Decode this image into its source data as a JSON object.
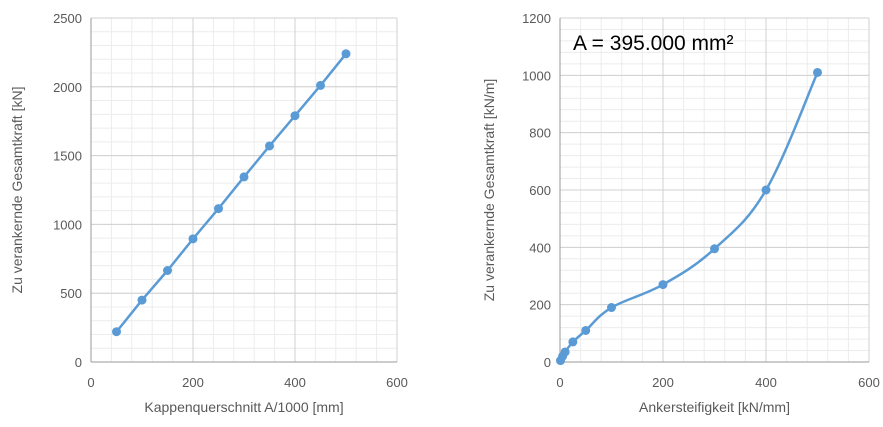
{
  "chart_data": [
    {
      "type": "line",
      "title": "",
      "xlabel": "Kappenquerschnitt A/1000 [mm]",
      "ylabel": "Zu verankernde Gesamtkraft [kN]",
      "xlim": [
        0,
        600
      ],
      "ylim": [
        0,
        2500
      ],
      "xticks": [
        0,
        200,
        400,
        600
      ],
      "yticks": [
        0,
        500,
        1000,
        1500,
        2000,
        2500
      ],
      "xtick_labels": [
        "0",
        "200",
        "400",
        "600"
      ],
      "ytick_labels": [
        "0",
        "500",
        "1000",
        "1500",
        "2000",
        "2500"
      ],
      "grid": true,
      "legend": "none",
      "color": "#5B9BD5",
      "smooth": false,
      "series": [
        {
          "x": [
            50,
            100,
            150,
            200,
            250,
            300,
            350,
            400,
            450,
            500
          ],
          "y": [
            220,
            450,
            665,
            895,
            1115,
            1345,
            1570,
            1790,
            2010,
            2240
          ]
        }
      ],
      "annotations": []
    },
    {
      "type": "line",
      "title": "",
      "xlabel": "Ankersteifigkeit [kN/mm]",
      "ylabel": "Zu verankernde Gesamtkraft [kN/m]",
      "xlim": [
        0,
        600
      ],
      "ylim": [
        0,
        1200
      ],
      "xticks": [
        0,
        200,
        400,
        600
      ],
      "yticks": [
        0,
        200,
        400,
        600,
        800,
        1000,
        1200
      ],
      "xtick_labels": [
        "0",
        "200",
        "400",
        "600"
      ],
      "ytick_labels": [
        "0",
        "200",
        "400",
        "600",
        "800",
        "1000",
        "1200"
      ],
      "grid": true,
      "legend": "none",
      "color": "#5B9BD5",
      "smooth": true,
      "series": [
        {
          "x": [
            1,
            5,
            10,
            25,
            50,
            100,
            200,
            300,
            400,
            500
          ],
          "y": [
            5,
            20,
            35,
            70,
            110,
            190,
            270,
            395,
            600,
            1010
          ]
        }
      ],
      "annotations": [
        {
          "text": "A = 395.000 mm²",
          "position": "top-left"
        }
      ]
    }
  ]
}
